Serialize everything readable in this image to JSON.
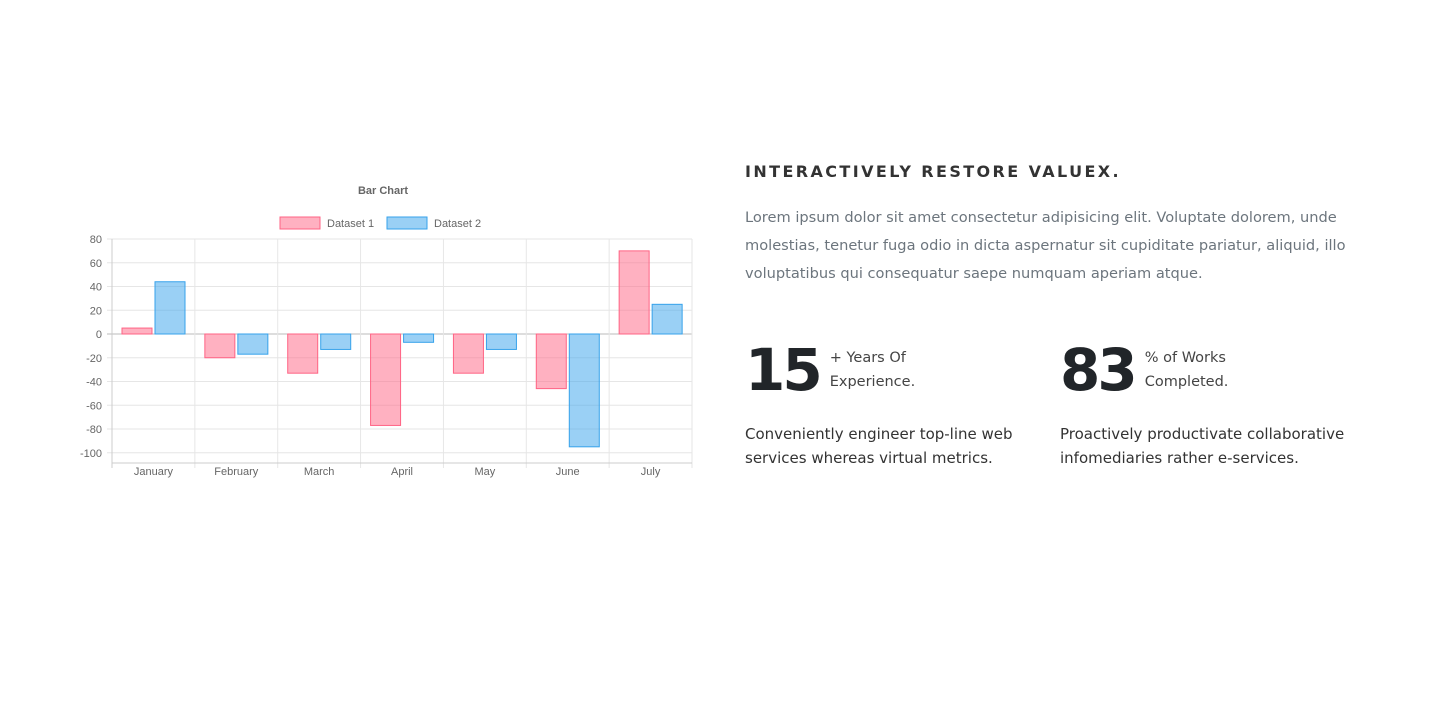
{
  "chart_data": {
    "type": "bar",
    "title": "Bar Chart",
    "categories": [
      "January",
      "February",
      "March",
      "April",
      "May",
      "June",
      "July"
    ],
    "series": [
      {
        "name": "Dataset 1",
        "values": [
          5,
          -20,
          -33,
          -77,
          -33,
          -46,
          70
        ],
        "color": "#ff6384"
      },
      {
        "name": "Dataset 2",
        "values": [
          44,
          -17,
          -13,
          -7,
          -13,
          -95,
          25
        ],
        "color": "#36a2eb"
      }
    ],
    "yticks": [
      80,
      60,
      40,
      20,
      0,
      -20,
      -40,
      -60,
      -80,
      -100
    ],
    "ylim": [
      -100,
      80
    ],
    "grid": true,
    "legend": "top"
  },
  "content": {
    "heading": "INTERACTIVELY RESTORE VALUEX.",
    "paragraph": "Lorem ipsum dolor sit amet consectetur adipisicing elit. Voluptate dolorem, unde molestias, tenetur fuga odio in dicta aspernatur sit cupiditate pariatur, aliquid, illo voluptatibus qui consequatur saepe numquam aperiam atque.",
    "stats": [
      {
        "number": "15",
        "label": "+ Years Of Experience.",
        "description": "Conveniently engineer top-line web services whereas virtual metrics."
      },
      {
        "number": "83",
        "label": "% of Works Completed.",
        "description": "Proactively productivate collaborative infomediaries rather e-services."
      }
    ]
  }
}
